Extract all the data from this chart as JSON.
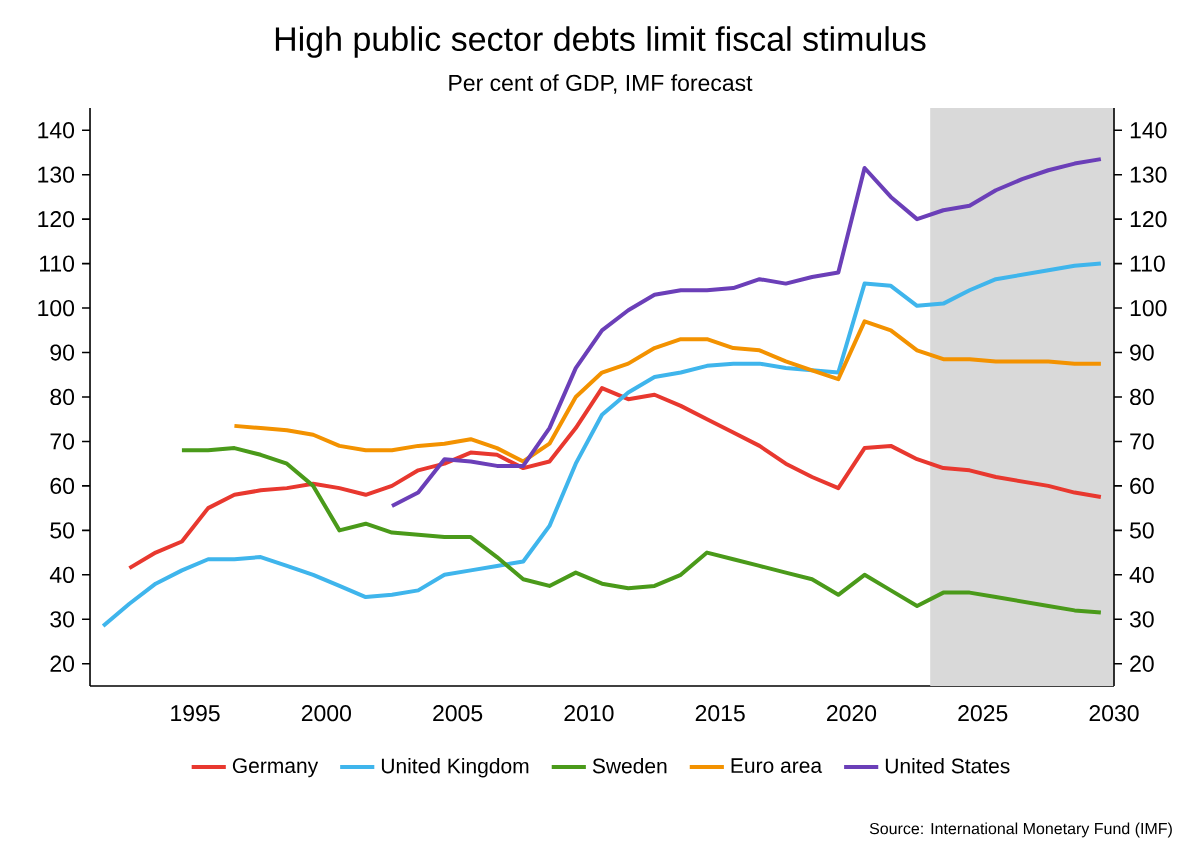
{
  "chart_data": {
    "type": "line",
    "title": "High public sector debts limit fiscal stimulus",
    "subtitle": "Per cent of GDP, IMF forecast",
    "annotations": [
      "Source: International Monetary Fund (IMF)"
    ],
    "series": [
      {
        "name": "Germany",
        "color": "#e8382f",
        "x": [
          1992.5,
          1993.5,
          1994.5,
          1995.5,
          1996.5,
          1997.5,
          1998.5,
          1999.5,
          2000.5,
          2001.5,
          2002.5,
          2003.5,
          2004.5,
          2005.5,
          2006.5,
          2007.5,
          2008.5,
          2009.5,
          2010.5,
          2011.5,
          2012.5,
          2013.5,
          2014.5,
          2015.5,
          2016.5,
          2017.5,
          2018.5,
          2019.5,
          2020.5,
          2021.5,
          2022.5,
          2023.5,
          2024.5,
          2025.5,
          2026.5,
          2027.5,
          2028.5,
          2029.5
        ],
        "values": [
          41.5,
          45,
          47.5,
          55,
          58,
          59,
          59.5,
          60.5,
          59.5,
          58,
          60,
          63.5,
          65,
          67.5,
          67,
          64,
          65.5,
          73,
          82,
          79.5,
          80.5,
          78,
          75,
          72,
          69,
          65,
          62,
          59.5,
          68.5,
          69,
          66,
          64,
          63.5,
          62,
          61,
          60,
          58.5,
          57.5
        ]
      },
      {
        "name": "United Kingdom",
        "color": "#3fb5ec",
        "x": [
          1991.5,
          1992.5,
          1993.5,
          1994.5,
          1995.5,
          1996.5,
          1997.5,
          1998.5,
          1999.5,
          2000.5,
          2001.5,
          2002.5,
          2003.5,
          2004.5,
          2005.5,
          2006.5,
          2007.5,
          2008.5,
          2009.5,
          2010.5,
          2011.5,
          2012.5,
          2013.5,
          2014.5,
          2015.5,
          2016.5,
          2017.5,
          2018.5,
          2019.5,
          2020.5,
          2021.5,
          2022.5,
          2023.5,
          2024.5,
          2025.5,
          2026.5,
          2027.5,
          2028.5,
          2029.5
        ],
        "values": [
          28.5,
          33.5,
          38,
          41,
          43.5,
          43.5,
          44,
          42,
          40,
          37.5,
          35,
          35.5,
          36.5,
          40,
          41,
          42,
          43,
          51,
          65,
          76,
          81,
          84.5,
          85.5,
          87,
          87.5,
          87.5,
          86.5,
          86,
          85.5,
          105.5,
          105,
          100.5,
          101,
          104,
          106.5,
          107.5,
          108.5,
          109.5,
          110
        ]
      },
      {
        "name": "Sweden",
        "color": "#4a9a1a",
        "x": [
          1994.5,
          1995.5,
          1996.5,
          1997.5,
          1998.5,
          1999.5,
          2000.5,
          2001.5,
          2002.5,
          2003.5,
          2004.5,
          2005.5,
          2006.5,
          2007.5,
          2008.5,
          2009.5,
          2010.5,
          2011.5,
          2012.5,
          2013.5,
          2014.5,
          2015.5,
          2016.5,
          2017.5,
          2018.5,
          2019.5,
          2020.5,
          2021.5,
          2022.5,
          2023.5,
          2024.5,
          2025.5,
          2026.5,
          2027.5,
          2028.5,
          2029.5
        ],
        "values": [
          68,
          68,
          68.5,
          67,
          65,
          60,
          50,
          51.5,
          49.5,
          49,
          48.5,
          48.5,
          44,
          39,
          37.5,
          40.5,
          38,
          37,
          37.5,
          40,
          45,
          43.5,
          42,
          40.5,
          39,
          35.5,
          40,
          36.5,
          33,
          36,
          36,
          35,
          34,
          33,
          32,
          31.5
        ]
      },
      {
        "name": "Euro area",
        "color": "#f39200",
        "x": [
          1996.5,
          1997.5,
          1998.5,
          1999.5,
          2000.5,
          2001.5,
          2002.5,
          2003.5,
          2004.5,
          2005.5,
          2006.5,
          2007.5,
          2008.5,
          2009.5,
          2010.5,
          2011.5,
          2012.5,
          2013.5,
          2014.5,
          2015.5,
          2016.5,
          2017.5,
          2018.5,
          2019.5,
          2020.5,
          2021.5,
          2022.5,
          2023.5,
          2024.5,
          2025.5,
          2026.5,
          2027.5,
          2028.5,
          2029.5
        ],
        "values": [
          73.5,
          73,
          72.5,
          71.5,
          69,
          68,
          68,
          69,
          69.5,
          70.5,
          68.5,
          65.5,
          69.5,
          80,
          85.5,
          87.5,
          91,
          93,
          93,
          91,
          90.5,
          88,
          86,
          84,
          97,
          95,
          90.5,
          88.5,
          88.5,
          88,
          88,
          88,
          87.5,
          87.5
        ]
      },
      {
        "name": "United States",
        "color": "#6b3fb8",
        "x": [
          2002.5,
          2003.5,
          2004.5,
          2005.5,
          2006.5,
          2007.5,
          2008.5,
          2009.5,
          2010.5,
          2011.5,
          2012.5,
          2013.5,
          2014.5,
          2015.5,
          2016.5,
          2017.5,
          2018.5,
          2019.5,
          2020.5,
          2021.5,
          2022.5,
          2023.5,
          2024.5,
          2025.5,
          2026.5,
          2027.5,
          2028.5,
          2029.5
        ],
        "values": [
          55.5,
          58.5,
          66,
          65.5,
          64.5,
          64.5,
          73,
          86.5,
          95,
          99.5,
          103,
          104,
          104,
          104.5,
          106.5,
          105.5,
          107,
          108,
          131.5,
          125,
          120,
          122,
          123,
          126.5,
          129,
          131,
          132.5,
          133.5
        ]
      }
    ],
    "bands": [
      {
        "axis": "x",
        "from": 2023,
        "to": 2030,
        "color": "#d9d9d9"
      }
    ],
    "xlim": [
      1991,
      2030
    ],
    "xticks": [
      1995,
      2000,
      2005,
      2010,
      2015,
      2020,
      2025,
      2030
    ],
    "ylim": [
      15,
      145
    ],
    "yticks": [
      20,
      30,
      40,
      50,
      60,
      70,
      80,
      90,
      100,
      110,
      120,
      130,
      140
    ],
    "y2lim": [
      15,
      145
    ],
    "y2ticks": [
      20,
      30,
      40,
      50,
      60,
      70,
      80,
      90,
      100,
      110,
      120,
      130,
      140
    ],
    "grid": false,
    "legend": "bottom",
    "marker": "none",
    "line_style": "solid"
  }
}
